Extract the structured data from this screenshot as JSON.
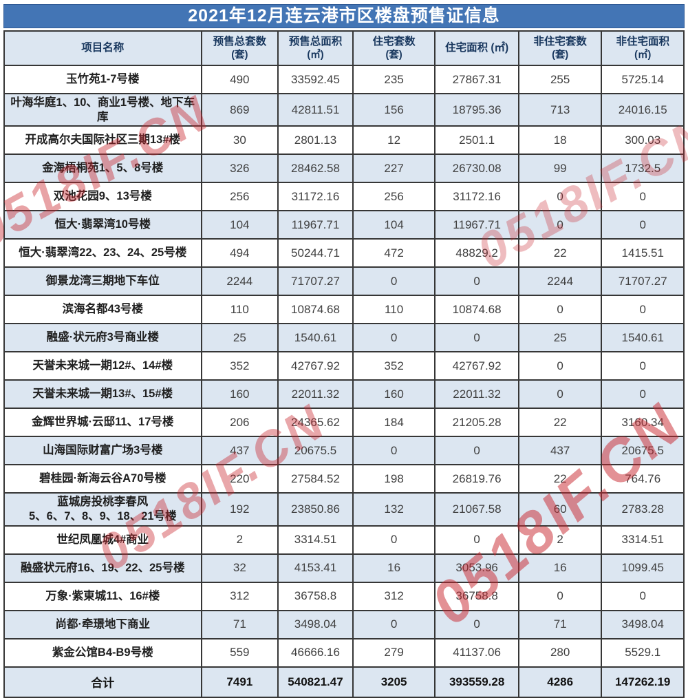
{
  "title": "2021年12月连云港市区楼盘预售证信息",
  "watermark": {
    "text": "0518IF.CN",
    "color": "#c9252d"
  },
  "colors": {
    "title_bg": "#4375b5",
    "header_bg": "#dce6f1",
    "row_alt_bg": "#dce6f1",
    "border": "#363636",
    "watermark_red": "#c9252d"
  },
  "table": {
    "columns": [
      {
        "label": "项目名称",
        "unit": ""
      },
      {
        "label": "预售总套数",
        "unit": "(套)"
      },
      {
        "label": "预售总面积",
        "unit": "(㎡)"
      },
      {
        "label": "住宅套数",
        "unit": "(套)"
      },
      {
        "label": "住宅面积 (㎡)",
        "unit": ""
      },
      {
        "label": "非住宅套数",
        "unit": "(套)"
      },
      {
        "label": "非住宅面积",
        "unit": "(㎡)"
      }
    ],
    "rows": [
      {
        "name": "玉竹苑1-7号楼",
        "values": [
          "490",
          "33592.45",
          "235",
          "27867.31",
          "255",
          "5725.14"
        ]
      },
      {
        "name": "叶海华庭1、10、商业1号楼、地下车库",
        "values": [
          "869",
          "42811.51",
          "156",
          "18795.36",
          "713",
          "24016.15"
        ]
      },
      {
        "name": "开成高尔夫国际社区三期13#楼",
        "values": [
          "30",
          "2801.13",
          "12",
          "2501.1",
          "18",
          "300.03"
        ]
      },
      {
        "name": "金海梧桐苑1、5、8号楼",
        "values": [
          "326",
          "28462.58",
          "227",
          "26730.08",
          "99",
          "1732.5"
        ]
      },
      {
        "name": "双池花园9、13号楼",
        "values": [
          "256",
          "31172.16",
          "256",
          "31172.16",
          "0",
          "0"
        ]
      },
      {
        "name": "恒大·翡翠湾10号楼",
        "values": [
          "104",
          "11967.71",
          "104",
          "11967.71",
          "0",
          "0"
        ]
      },
      {
        "name": "恒大·翡翠湾22、23、24、25号楼",
        "values": [
          "494",
          "50244.71",
          "472",
          "48829.2",
          "22",
          "1415.51"
        ]
      },
      {
        "name": "御景龙湾三期地下车位",
        "values": [
          "2244",
          "71707.27",
          "0",
          "0",
          "2244",
          "71707.27"
        ]
      },
      {
        "name": "滨海名都43号楼",
        "values": [
          "110",
          "10874.68",
          "110",
          "10874.68",
          "0",
          "0"
        ]
      },
      {
        "name": "融盛·状元府3号商业楼",
        "values": [
          "25",
          "1540.61",
          "0",
          "0",
          "25",
          "1540.61"
        ]
      },
      {
        "name": "天誉未来城一期12#、14#楼",
        "values": [
          "352",
          "42767.92",
          "352",
          "42767.92",
          "0",
          "0"
        ]
      },
      {
        "name": "天誉未来城一期13#、15#楼",
        "values": [
          "160",
          "22011.32",
          "160",
          "22011.32",
          "0",
          "0"
        ]
      },
      {
        "name": "金辉世界城·云邸11、17号楼",
        "values": [
          "206",
          "24365.62",
          "184",
          "21205.28",
          "22",
          "3160.34"
        ]
      },
      {
        "name": "山海国际财富广场3号楼",
        "values": [
          "437",
          "20675.5",
          "0",
          "0",
          "437",
          "20675.5"
        ]
      },
      {
        "name": "碧桂园·新海云谷A70号楼",
        "values": [
          "220",
          "27584.52",
          "198",
          "26819.76",
          "22",
          "764.76"
        ]
      },
      {
        "name": "蓝城房投桃李春风\n5、6、7、8、9、18、21号楼",
        "values": [
          "192",
          "23850.86",
          "132",
          "21067.58",
          "60",
          "2783.28"
        ]
      },
      {
        "name": "世纪凤凰城4#商业",
        "values": [
          "2",
          "3314.51",
          "0",
          "0",
          "2",
          "3314.51"
        ]
      },
      {
        "name": "融盛状元府16、19、22、25号楼",
        "values": [
          "32",
          "4153.41",
          "16",
          "3053.96",
          "16",
          "1099.45"
        ]
      },
      {
        "name": "万象·紫東城11、16#楼",
        "values": [
          "312",
          "36758.8",
          "312",
          "36758.8",
          "0",
          "0"
        ]
      },
      {
        "name": "尚都·牵璟地下商业",
        "values": [
          "71",
          "3498.04",
          "0",
          "0",
          "71",
          "3498.04"
        ]
      },
      {
        "name": "紫金公馆B4-B9号楼",
        "values": [
          "559",
          "46666.16",
          "279",
          "41137.06",
          "280",
          "5529.1"
        ]
      }
    ],
    "total": {
      "name": "合计",
      "values": [
        "7491",
        "540821.47",
        "3205",
        "393559.28",
        "4286",
        "147262.19"
      ]
    }
  }
}
